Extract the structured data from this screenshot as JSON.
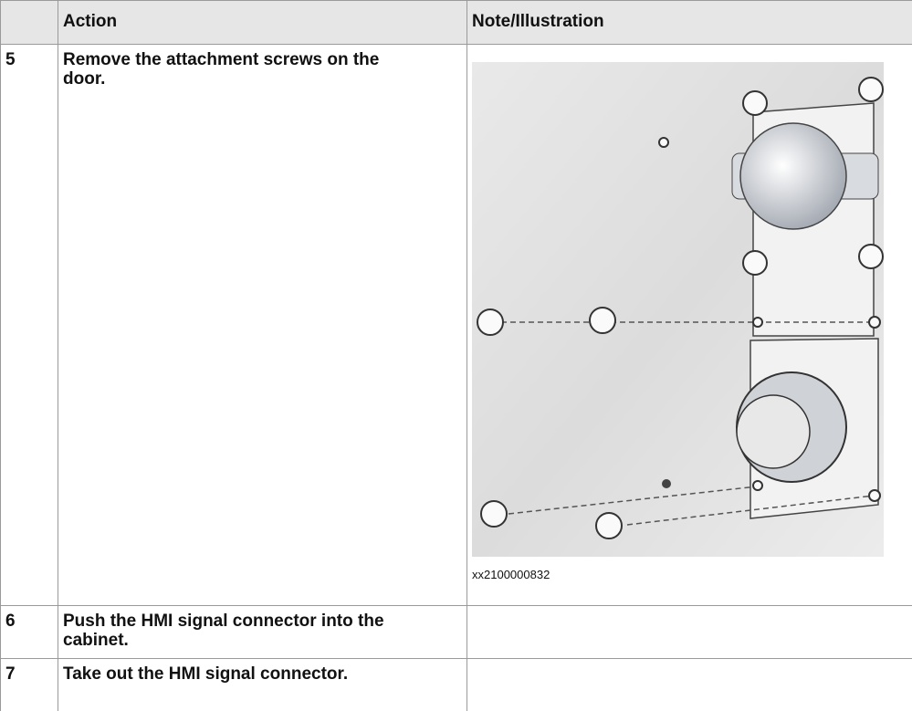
{
  "table": {
    "header": {
      "action": "Action",
      "note": "Note/Illustration"
    },
    "rows": [
      {
        "step": "5",
        "action": "Remove the attachment screws on the door.",
        "note_caption": "xx2100000832"
      },
      {
        "step": "6",
        "action": "Push the HMI signal connector into the cabinet."
      },
      {
        "step": "7",
        "action": "Take out the HMI signal connector."
      }
    ]
  }
}
